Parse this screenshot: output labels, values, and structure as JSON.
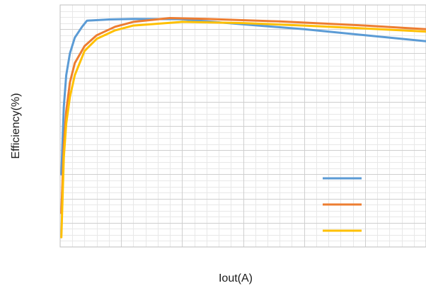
{
  "chart_data": {
    "type": "line",
    "title": "",
    "xlabel": "Iout(A)",
    "ylabel": "Efficiency(%)",
    "xlim": [
      0,
      30
    ],
    "ylim": [
      0,
      100
    ],
    "grid": "major and minor",
    "legend": "bottom-right",
    "series": [
      {
        "color": "#5b9bd5",
        "points": [
          [
            0.1,
            30
          ],
          [
            0.3,
            58
          ],
          [
            0.5,
            71
          ],
          [
            0.8,
            80
          ],
          [
            1.2,
            86.5
          ],
          [
            1.8,
            91
          ],
          [
            2.2,
            93.5
          ],
          [
            4,
            94
          ],
          [
            6,
            94.2
          ],
          [
            10,
            94.1
          ],
          [
            15,
            92
          ],
          [
            20,
            90
          ],
          [
            25,
            87.5
          ],
          [
            30,
            85
          ]
        ]
      },
      {
        "color": "#ed7d31",
        "points": [
          [
            0.1,
            14
          ],
          [
            0.3,
            42
          ],
          [
            0.5,
            56
          ],
          [
            0.8,
            68
          ],
          [
            1.2,
            76
          ],
          [
            2,
            83
          ],
          [
            3,
            87.5
          ],
          [
            4.5,
            91
          ],
          [
            6,
            93
          ],
          [
            9,
            94.6
          ],
          [
            12,
            94.2
          ],
          [
            18,
            93.2
          ],
          [
            25,
            91.5
          ],
          [
            30,
            90
          ]
        ]
      },
      {
        "color": "#ffc000",
        "points": [
          [
            0.1,
            4
          ],
          [
            0.3,
            37
          ],
          [
            0.5,
            51
          ],
          [
            0.8,
            62
          ],
          [
            1.2,
            71
          ],
          [
            2,
            81
          ],
          [
            3,
            86
          ],
          [
            4.5,
            89.5
          ],
          [
            6,
            91.5
          ],
          [
            10,
            93
          ],
          [
            15,
            92.5
          ],
          [
            20,
            91.5
          ],
          [
            25,
            90.3
          ],
          [
            30,
            89
          ]
        ]
      }
    ]
  }
}
